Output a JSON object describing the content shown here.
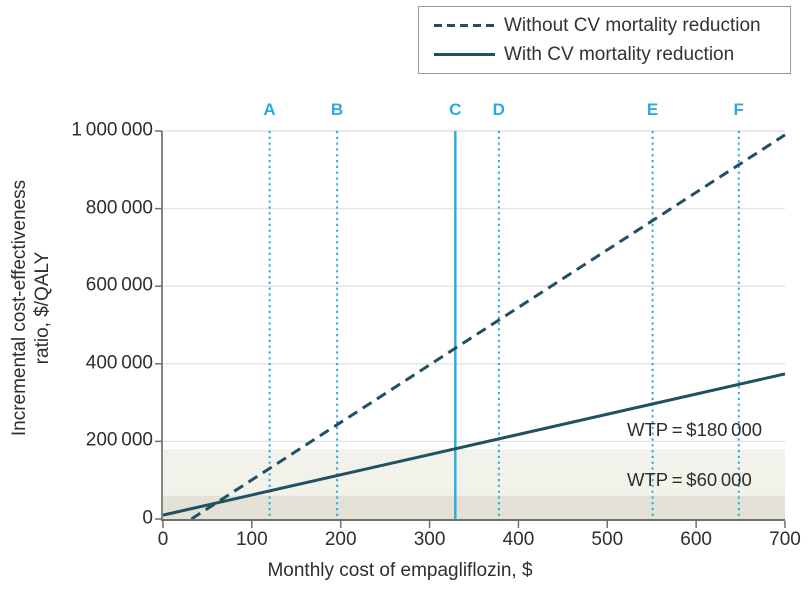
{
  "chart_data": {
    "type": "line",
    "title": "",
    "xlabel": "Monthly cost of empagliflozin, $",
    "ylabel_lines": [
      "Incremental cost-effectiveness",
      "ratio, $/QALY"
    ],
    "xlim": [
      0,
      700
    ],
    "ylim": [
      0,
      1000000
    ],
    "x_ticks": [
      {
        "value": 0,
        "label": "0"
      },
      {
        "value": 100,
        "label": "100"
      },
      {
        "value": 200,
        "label": "200"
      },
      {
        "value": 300,
        "label": "300"
      },
      {
        "value": 400,
        "label": "400"
      },
      {
        "value": 500,
        "label": "500"
      },
      {
        "value": 600,
        "label": "600"
      },
      {
        "value": 700,
        "label": "700"
      }
    ],
    "y_ticks": [
      {
        "value": 0,
        "label": "0"
      },
      {
        "value": 200000,
        "label": "200 000"
      },
      {
        "value": 400000,
        "label": "400 000"
      },
      {
        "value": 600000,
        "label": "600 000"
      },
      {
        "value": 800000,
        "label": "800 000"
      },
      {
        "value": 1000000,
        "label": "1 000 000"
      }
    ],
    "grid": "horizontal",
    "legend": {
      "position": "top-right",
      "entries": [
        {
          "label": "Without CV mortality reduction",
          "style": "dashed"
        },
        {
          "label": "With CV mortality reduction",
          "style": "solid"
        }
      ]
    },
    "series": [
      {
        "name": "Without CV mortality reduction",
        "style": "dashed",
        "points": [
          [
            32,
            0
          ],
          [
            700,
            990000
          ]
        ]
      },
      {
        "name": "With CV mortality reduction",
        "style": "solid",
        "points": [
          [
            0,
            10000
          ],
          [
            700,
            374000
          ]
        ]
      }
    ],
    "scenario_lines": [
      {
        "label": "A",
        "x": 120,
        "style": "dotted"
      },
      {
        "label": "B",
        "x": 196,
        "style": "dotted"
      },
      {
        "label": "C",
        "x": 329,
        "style": "solid"
      },
      {
        "label": "D",
        "x": 378,
        "style": "dotted"
      },
      {
        "label": "E",
        "x": 551,
        "style": "dotted"
      },
      {
        "label": "F",
        "x": 648,
        "style": "dotted"
      }
    ],
    "wtp_bands": [
      {
        "label": "WTP = $180 000",
        "threshold": 180000,
        "fill": "#f2f1ea"
      },
      {
        "label": "WTP = $60 000",
        "threshold": 60000,
        "fill": "#e4e1d6"
      }
    ],
    "colors": {
      "series_line": "#215063",
      "scenario_line": "#29abe2",
      "scenario_label": "#29abe2",
      "gridline": "#e3e3e3",
      "axis": "#6f6f6f",
      "text": "#2e2e2e"
    }
  }
}
